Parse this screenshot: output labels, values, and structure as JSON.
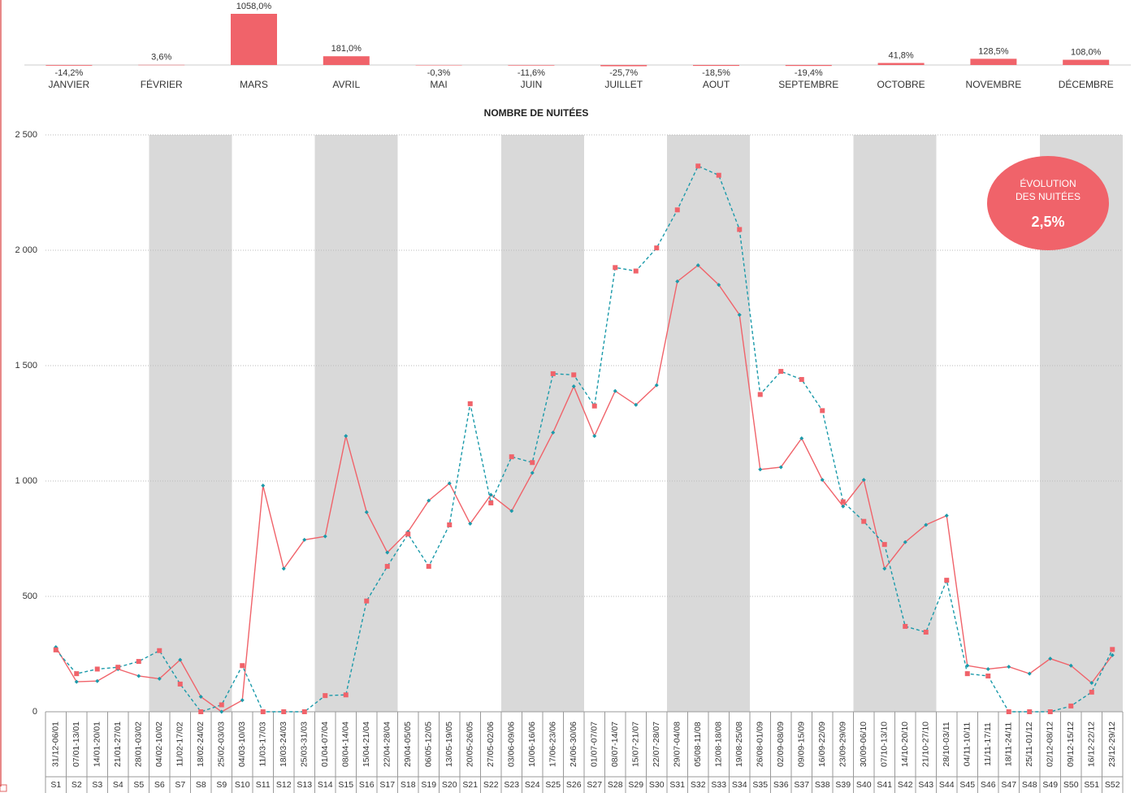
{
  "chart_data": [
    {
      "type": "bar",
      "categories": [
        "JANVIER",
        "FÉVRIER",
        "MARS",
        "AVRIL",
        "MAI",
        "JUIN",
        "JUILLET",
        "AOUT",
        "SEPTEMBRE",
        "OCTOBRE",
        "NOVEMBRE",
        "DÉCEMBRE"
      ],
      "values": [
        -14.2,
        3.6,
        1058.0,
        181.0,
        -0.3,
        -11.6,
        -25.7,
        -18.5,
        -19.4,
        41.8,
        128.5,
        108.0
      ],
      "value_labels": [
        "-14,2%",
        "3,6%",
        "1058,0%",
        "181,0%",
        "-0,3%",
        "-11,6%",
        "-25,7%",
        "-18,5%",
        "-19,4%",
        "41,8%",
        "128,5%",
        "108,0%"
      ],
      "color": "#f0636a"
    },
    {
      "type": "line",
      "title": "NOMBRE DE NUITÉES",
      "categories": [
        "S1",
        "S2",
        "S3",
        "S4",
        "S5",
        "S6",
        "S7",
        "S8",
        "S9",
        "S10",
        "S11",
        "S12",
        "S13",
        "S14",
        "S15",
        "S16",
        "S17",
        "S18",
        "S19",
        "S20",
        "S21",
        "S22",
        "S23",
        "S24",
        "S25",
        "S26",
        "S27",
        "S28",
        "S29",
        "S30",
        "S31",
        "S32",
        "S33",
        "S34",
        "S35",
        "S36",
        "S37",
        "S38",
        "S39",
        "S40",
        "S41",
        "S42",
        "S43",
        "S44",
        "S45",
        "S46",
        "S47",
        "S48",
        "S49",
        "S50",
        "S51",
        "S52"
      ],
      "date_ranges": [
        "31/12-06/01",
        "07/01-13/01",
        "14/01-20/01",
        "21/01-27/01",
        "28/01-03/02",
        "04/02-10/02",
        "11/02-17/02",
        "18/02-24/02",
        "25/02-03/03",
        "04/03-10/03",
        "11/03-17/03",
        "18/03-24/03",
        "25/03-31/03",
        "01/04-07/04",
        "08/04-14/04",
        "15/04-21/04",
        "22/04-28/04",
        "29/04-05/05",
        "06/05-12/05",
        "13/05-19/05",
        "20/05-26/05",
        "27/05-02/06",
        "03/06-09/06",
        "10/06-16/06",
        "17/06-23/06",
        "24/06-30/06",
        "01/07-07/07",
        "08/07-14/07",
        "15/07-21/07",
        "22/07-28/07",
        "29/07-04/08",
        "05/08-11/08",
        "12/08-18/08",
        "19/08-25/08",
        "26/08-01/09",
        "02/09-08/09",
        "09/09-15/09",
        "16/09-22/09",
        "23/09-29/09",
        "30/09-06/10",
        "07/10-13/10",
        "14/10-20/10",
        "21/10-27/10",
        "28/10-03/11",
        "04/11-10/11",
        "11/11-17/11",
        "18/11-24/11",
        "25/11-01/12",
        "02/12-08/12",
        "09/12-15/12",
        "16/12-22/12",
        "23/12-29/12"
      ],
      "series": [
        {
          "color": "#f0636a",
          "marker_color": "#1b9aaa",
          "marker": "diamond",
          "dashed": false,
          "values": [
            280,
            130,
            133,
            185,
            155,
            143,
            225,
            65,
            0,
            50,
            980,
            620,
            745,
            760,
            1195,
            865,
            690,
            780,
            915,
            990,
            815,
            940,
            870,
            1035,
            1210,
            1410,
            1195,
            1390,
            1330,
            1415,
            1865,
            1935,
            1850,
            1720,
            1050,
            1060,
            1185,
            1005,
            890,
            1005,
            620,
            735,
            810,
            850,
            200,
            185,
            195,
            165,
            230,
            200,
            125,
            245
          ]
        },
        {
          "color": "#1b9aaa",
          "marker_color": "#f0636a",
          "marker": "square",
          "dashed": true,
          "values": [
            268,
            165,
            185,
            193,
            218,
            265,
            120,
            0,
            30,
            200,
            0,
            0,
            0,
            70,
            73,
            480,
            630,
            770,
            630,
            810,
            1335,
            905,
            1105,
            1080,
            1465,
            1460,
            1325,
            1925,
            1910,
            2010,
            2175,
            2365,
            2325,
            2090,
            1375,
            1475,
            1440,
            1305,
            910,
            825,
            725,
            370,
            345,
            570,
            165,
            155,
            0,
            0,
            0,
            25,
            85,
            270
          ]
        }
      ],
      "ylim": [
        0,
        2500
      ],
      "yticks": [
        0,
        500,
        {
          "value": 1000,
          "label": "1 000"
        },
        {
          "value": 1500,
          "label": "1 500"
        },
        {
          "value": 2000,
          "label": "2 000"
        },
        {
          "value": 2500,
          "label": "2 500"
        }
      ],
      "grid": true,
      "badge": {
        "lines": [
          "ÉVOLUTION",
          "DES NUITÉES"
        ],
        "value": {
          "value": 2.5,
          "label": "2,5%"
        },
        "color": "#f0636a"
      }
    }
  ]
}
